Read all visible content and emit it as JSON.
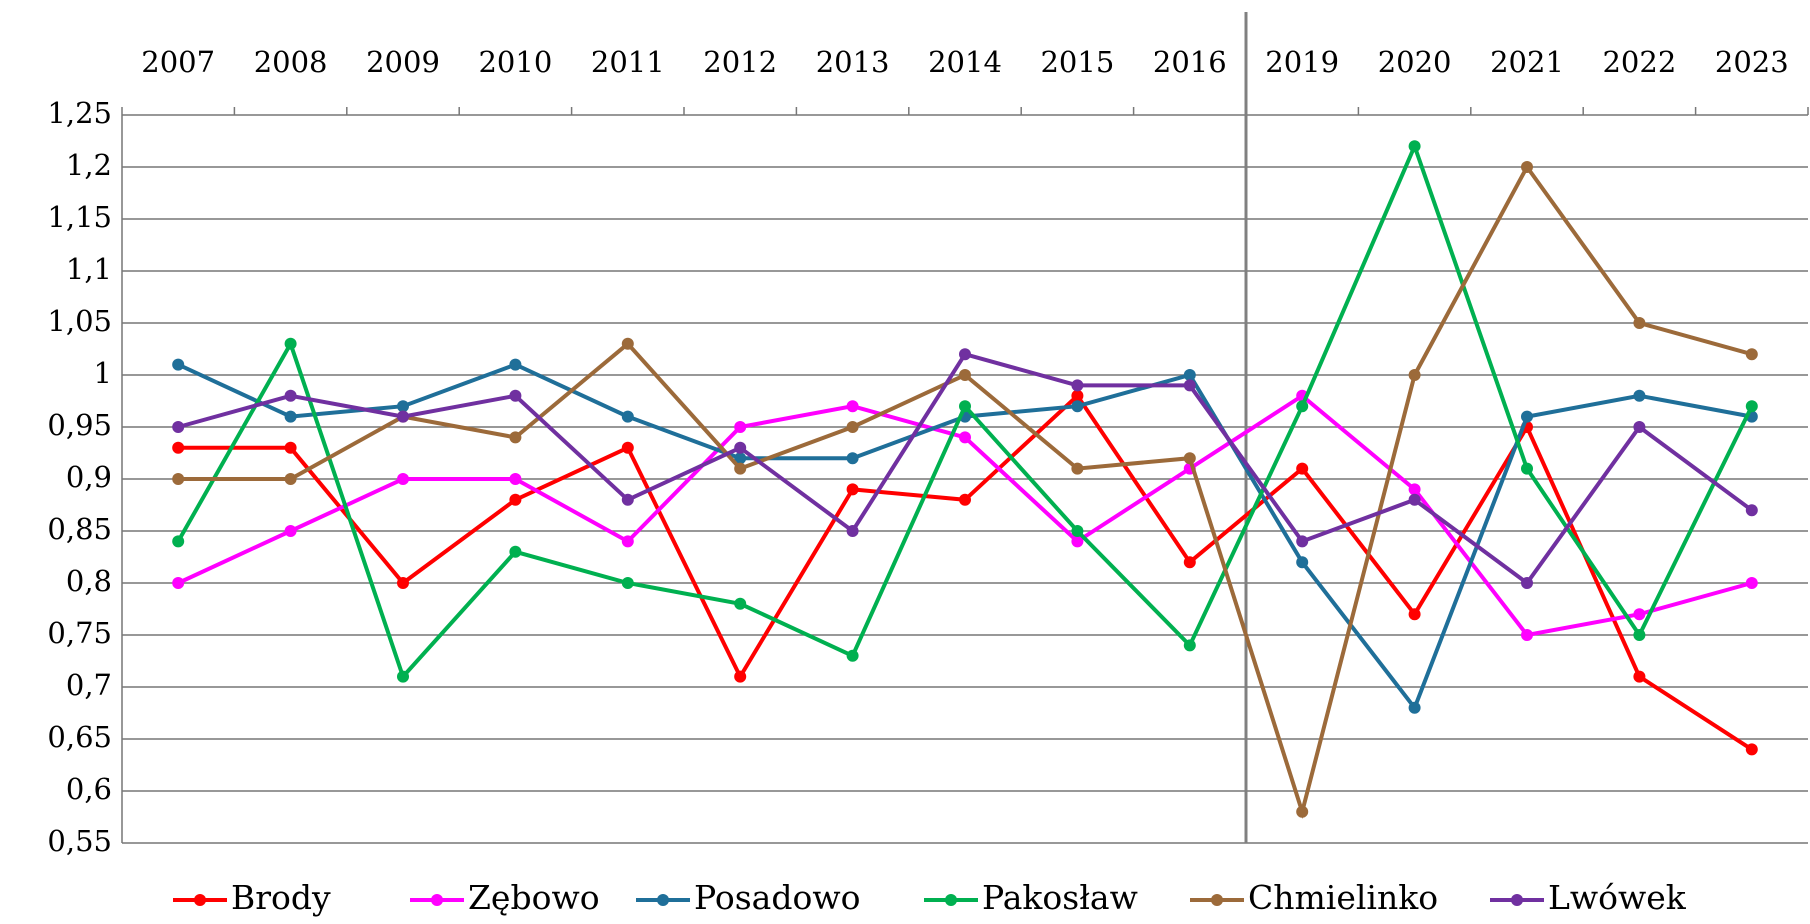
{
  "chart_data": {
    "type": "line",
    "categories": [
      "2007",
      "2008",
      "2009",
      "2010",
      "2011",
      "2012",
      "2013",
      "2014",
      "2015",
      "2016",
      "2019",
      "2020",
      "2021",
      "2022",
      "2023"
    ],
    "ylim": [
      0.55,
      1.25
    ],
    "yticks": [
      {
        "value": 0.55,
        "label": "0,55"
      },
      {
        "value": 0.6,
        "label": "0,6"
      },
      {
        "value": 0.65,
        "label": "0,65"
      },
      {
        "value": 0.7,
        "label": "0,7"
      },
      {
        "value": 0.75,
        "label": "0,75"
      },
      {
        "value": 0.8,
        "label": "0,8"
      },
      {
        "value": 0.85,
        "label": "0,85"
      },
      {
        "value": 0.9,
        "label": "0,9"
      },
      {
        "value": 0.95,
        "label": "0,95"
      },
      1,
      {
        "value": 1.05,
        "label": "1,05"
      },
      {
        "value": 1.1,
        "label": "1,1"
      },
      {
        "value": 1.15,
        "label": "1,15"
      },
      {
        "value": 1.2,
        "label": "1,2"
      },
      {
        "value": 1.25,
        "label": "1,25"
      }
    ],
    "grid": true,
    "legend": "bottom",
    "series": [
      {
        "name": "Brody",
        "color": "#ff0000",
        "values": [
          0.93,
          0.93,
          0.8,
          0.88,
          0.93,
          0.71,
          0.89,
          0.88,
          0.98,
          0.82,
          0.91,
          0.77,
          0.95,
          0.71,
          0.64
        ]
      },
      {
        "name": "Zębowo",
        "color": "#ff00ff",
        "values": [
          0.8,
          0.85,
          0.9,
          0.9,
          0.84,
          0.95,
          0.97,
          0.94,
          0.84,
          0.91,
          0.98,
          0.89,
          0.75,
          0.77,
          0.8
        ]
      },
      {
        "name": "Posadowo",
        "color": "#1f6f99",
        "values": [
          1.01,
          0.96,
          0.97,
          1.01,
          0.96,
          0.92,
          0.92,
          0.96,
          0.97,
          1.0,
          0.82,
          0.68,
          0.96,
          0.98,
          0.96
        ]
      },
      {
        "name": "Pakosław",
        "color": "#00b050",
        "values": [
          0.84,
          1.03,
          0.71,
          0.83,
          0.8,
          0.78,
          0.73,
          0.97,
          0.85,
          0.74,
          0.97,
          1.22,
          0.91,
          0.75,
          0.97
        ]
      },
      {
        "name": "Chmielinko",
        "color": "#9c6a3a",
        "values": [
          0.9,
          0.9,
          0.96,
          0.94,
          1.03,
          0.91,
          0.95,
          1.0,
          0.91,
          0.92,
          0.58,
          1.0,
          1.2,
          1.05,
          1.02
        ]
      },
      {
        "name": "Lwówek",
        "color": "#7030a0",
        "values": [
          0.95,
          0.98,
          0.96,
          0.98,
          0.88,
          0.93,
          0.85,
          1.02,
          0.99,
          0.99,
          0.84,
          0.88,
          0.8,
          0.95,
          0.87
        ]
      }
    ]
  }
}
